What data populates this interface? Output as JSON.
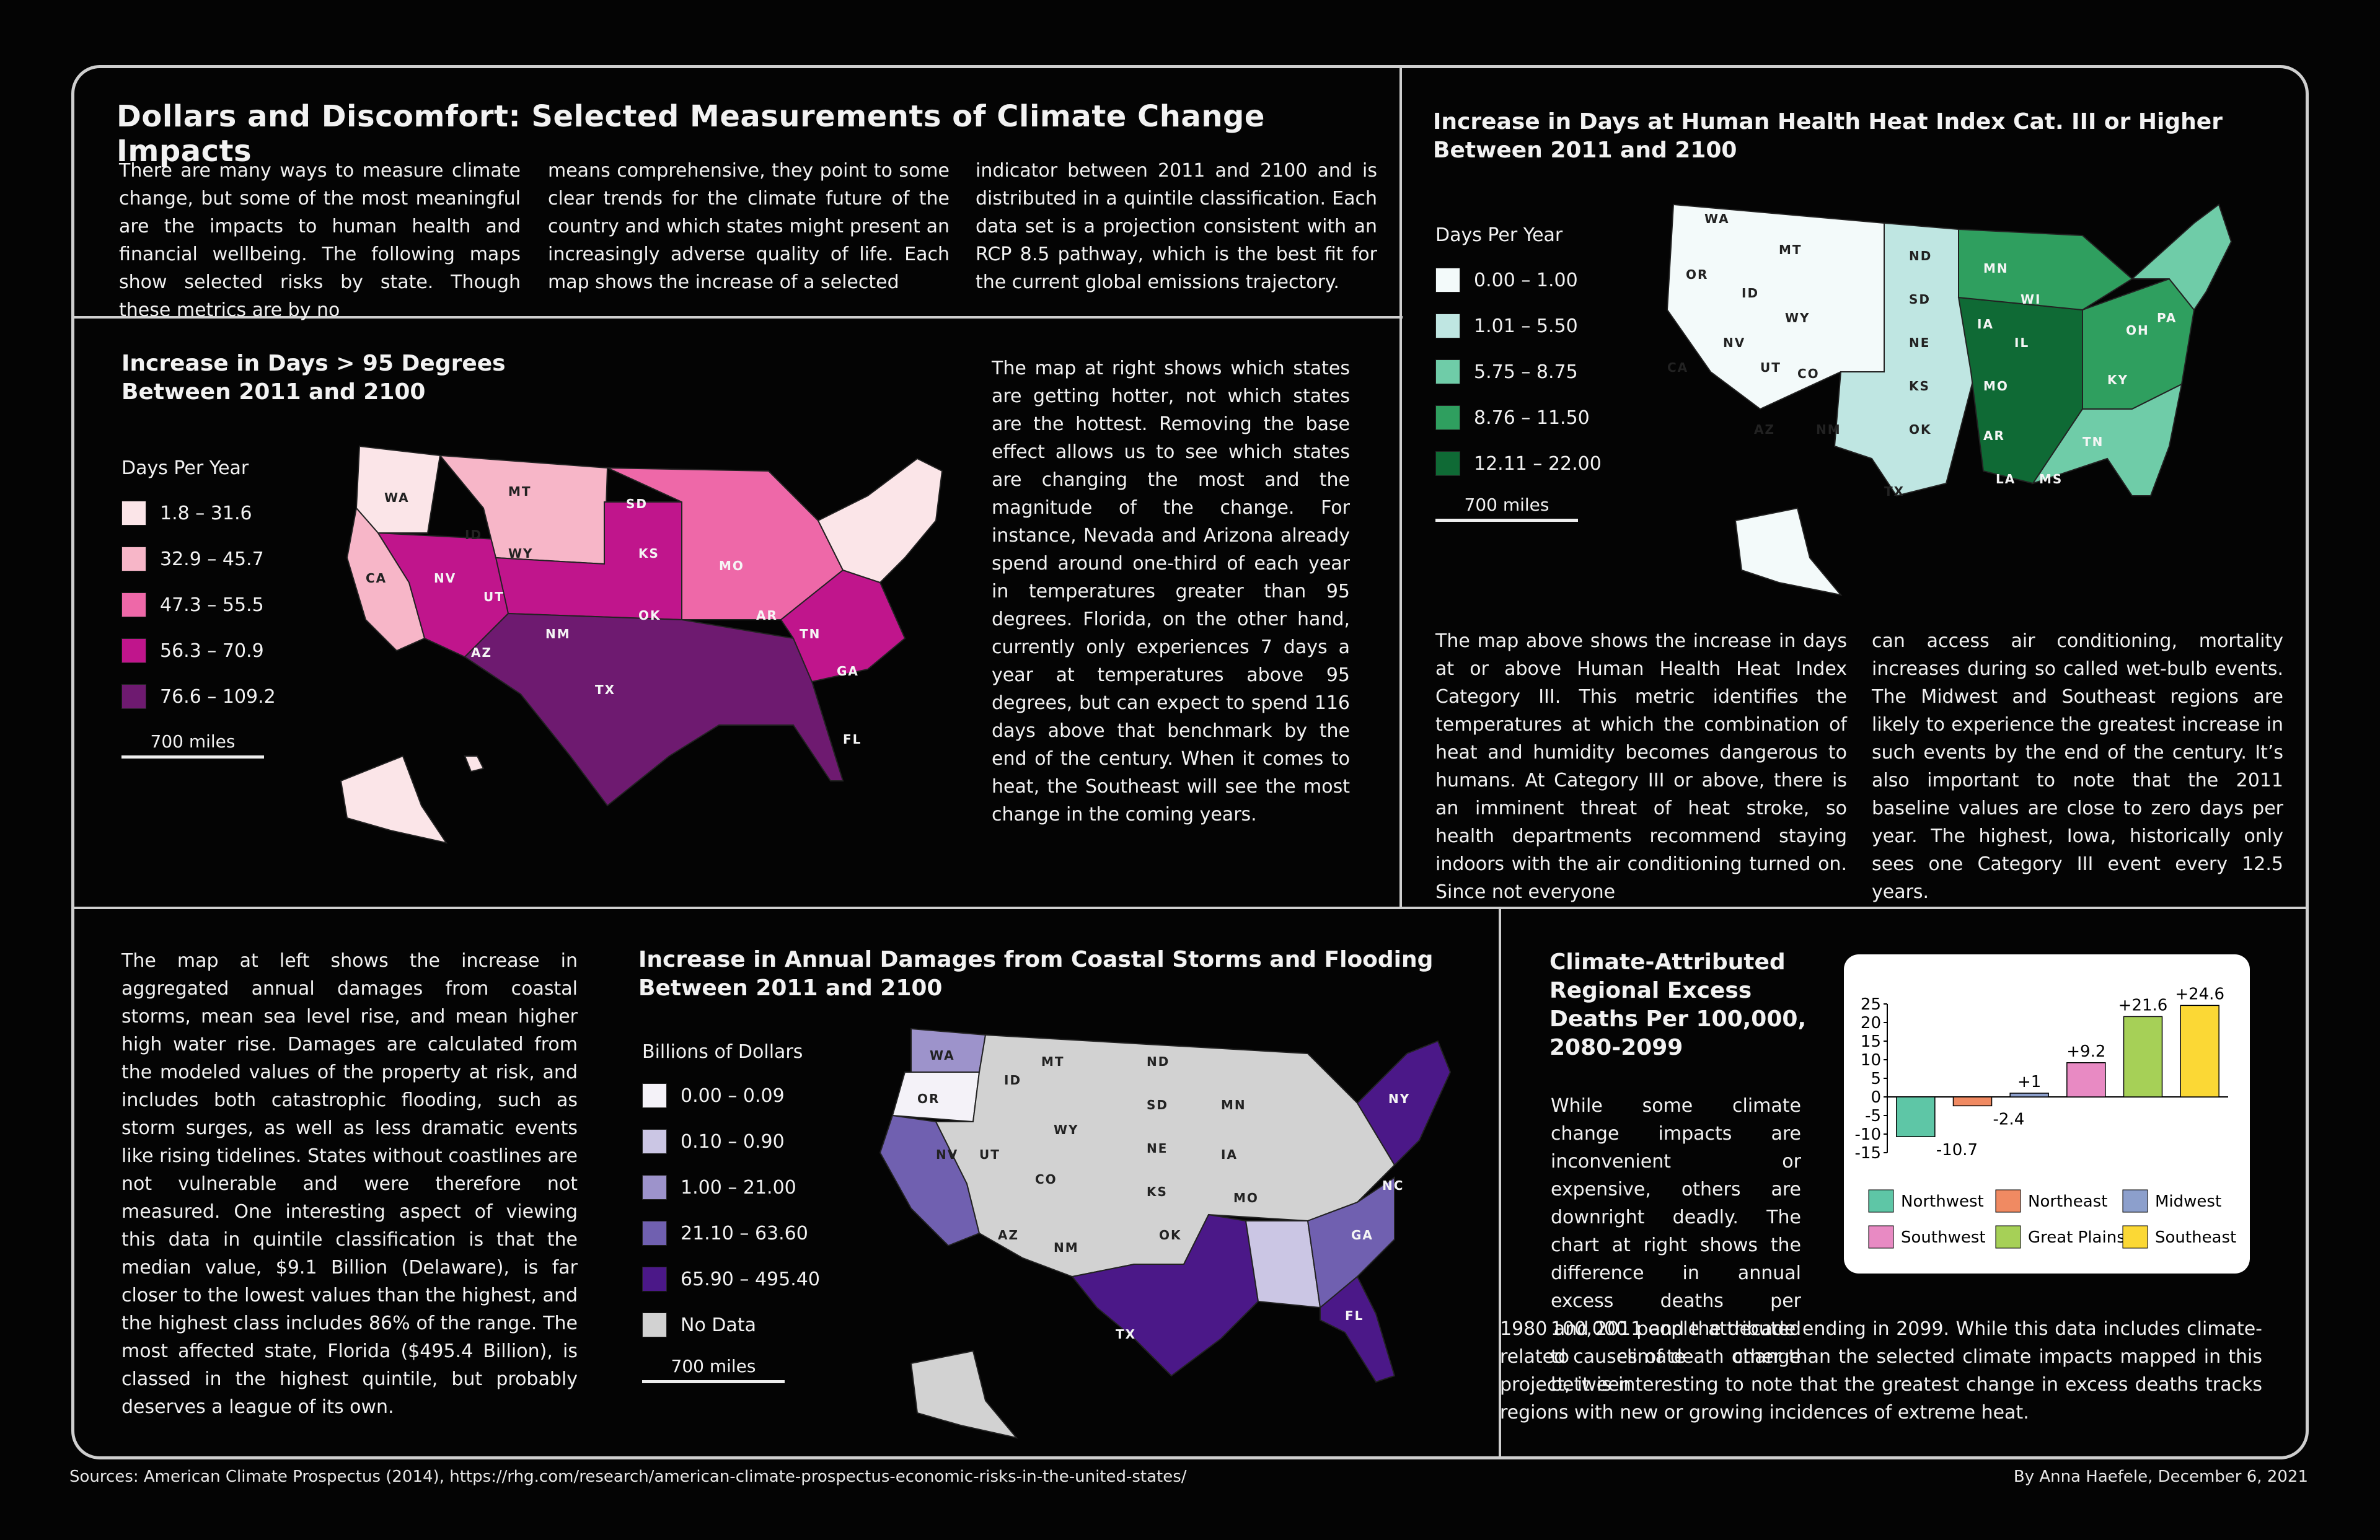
{
  "title": "Dollars and Discomfort: Selected Measurements of Climate Change Impacts",
  "intro": {
    "col1": "There are many ways to measure climate change, but some of the most meaningful are the impacts to human health and financial wellbeing. The following maps show selected risks by state. Though these metrics are by no",
    "col2": "means comprehensive, they point to some clear trends for the climate future of the country and which states might present an increasingly adverse quality of life. Each map shows the increase of a selected",
    "col3": "indicator between 2011 and 2100 and is distributed in a quintile classification. Each data set is a projection consistent with an RCP 8.5 pathway, which is the best fit for the current global emissions trajectory."
  },
  "heat_map": {
    "title": "Increase in Days > 95 Degrees\nBetween 2011 and 2100",
    "legend_title": "Days Per Year",
    "legend": [
      {
        "label": "1.8 – 31.6",
        "color": "#fbe5e8"
      },
      {
        "label": "32.9 – 45.7",
        "color": "#f7b6c8"
      },
      {
        "label": "47.3 – 55.5",
        "color": "#ee68a8"
      },
      {
        "label": "56.3 – 70.9",
        "color": "#c0158c"
      },
      {
        "label": "76.6 – 109.2",
        "color": "#6e1a70"
      }
    ],
    "scale": "700 miles",
    "text": "The map at right shows which states are getting hotter, not which states are the hottest. Removing the base effect allows us to see which states are changing the most and the magnitude of the change. For instance, Nevada and Arizona already spend around one-third of each year in temperatures greater than 95 degrees. Florida, on the other hand, currently only experiences 7 days a year at temperatures above 95 degrees, but can expect to spend 116 days above that benchmark by the end of the century. When it comes to heat, the Southeast will see the most change in the coming years."
  },
  "heat_index_map": {
    "title": "Increase in Days at Human Health Heat Index Cat. III or Higher\nBetween 2011 and 2100",
    "legend_title": "Days Per Year",
    "legend": [
      {
        "label": "0.00 – 1.00",
        "color": "#f3fafa"
      },
      {
        "label": "1.01 – 5.50",
        "color": "#bfe6e2"
      },
      {
        "label": "5.75 – 8.75",
        "color": "#6fcca8"
      },
      {
        "label": "8.76 – 11.50",
        "color": "#2f9f5f"
      },
      {
        "label": "12.11 – 22.00",
        "color": "#0f6a35"
      }
    ],
    "scale": "700 miles",
    "text_col1": "The map above shows the increase in days at or above Human Health Heat Index Category III. This metric identifies the temperatures at which the combination of heat and humidity becomes dangerous to humans. At Category III or above, there is an imminent threat of heat stroke, so health departments recommend staying indoors with the air conditioning turned on. Since not everyone",
    "text_col2": "can access air conditioning, mortality increases during so called wet-bulb events. The Midwest and Southeast regions are likely to experience the greatest increase in such events by the end of the century. It’s also important to note that the 2011 baseline values are close to zero days per year. The highest, Iowa, historically only sees one Category III event every 12.5 years."
  },
  "coastal_map": {
    "title": "Increase in Annual Damages from Coastal Storms and Flooding\nBetween 2011 and 2100",
    "legend_title": "Billions of Dollars",
    "legend": [
      {
        "label": "0.00 – 0.09",
        "color": "#f4f2f8"
      },
      {
        "label": "0.10 – 0.90",
        "color": "#cbc6e4"
      },
      {
        "label": "1.00 – 21.00",
        "color": "#9d93cb"
      },
      {
        "label": "21.10 – 63.60",
        "color": "#7060b0"
      },
      {
        "label": "65.90 – 495.40",
        "color": "#4b1888"
      },
      {
        "label": "No Data",
        "color": "#d2d2d2"
      }
    ],
    "scale": "700 miles",
    "text": "The map at left shows the increase in aggregated annual damages from coastal storms, mean sea level rise, and mean higher high water rise. Damages are calculated from the modeled values of the property at risk, and includes both catastrophic flooding, such as storm surges, as well as less dramatic events like rising tidelines. States without coastlines are not vulnerable and were therefore not measured. One interesting aspect of viewing this data in quintile classification is that the median value, $9.1 Billion (Delaware), is far closer to the lowest values than the highest, and the highest class includes 86% of the range. The most affected state, Florida ($495.4 Billion), is classed in the highest quintile, but probably deserves a league of its own."
  },
  "deaths": {
    "title": "Climate-Attributed\nRegional Excess\nDeaths Per 100,000,\n2080-2099",
    "text_narrow": "While some climate change impacts are inconvenient or expensive, others are downright deadly. The chart at right shows the difference in annual excess deaths per 100,000 people attributed to climate change between",
    "text_wide": "1980 and 2011 and the decade ending in 2099. While this data includes climate-related causes of death other than the selected climate impacts mapped in this project, it is interesting to note that the greatest change in excess deaths tracks regions with new or growing incidences of extreme heat."
  },
  "chart_data": {
    "type": "bar",
    "categories": [
      "Northwest",
      "Northeast",
      "Midwest",
      "Southwest",
      "Great Plains",
      "Southeast"
    ],
    "values": [
      -10.7,
      -2.4,
      1,
      9.2,
      21.6,
      24.6
    ],
    "value_labels": [
      "-10.7",
      "-2.4",
      "+1",
      "+9.2",
      "+21.6",
      "+24.6"
    ],
    "colors": [
      "#5ec6a6",
      "#f08a62",
      "#8c9fcc",
      "#e88ac3",
      "#a6d057",
      "#fbd835"
    ],
    "yticks": [
      "25",
      "20",
      "15",
      "10",
      "5",
      "0",
      "-5",
      "-10",
      "-15"
    ],
    "ylim": [
      -15,
      25
    ],
    "title": "",
    "xlabel": "",
    "ylabel": ""
  },
  "sources": "Sources: American Climate Prospectus (2014), https://rhg.com/research/american-climate-prospectus-economic-risks-in-the-united-states/",
  "byline": "By Anna Haefele, December 6, 2021"
}
